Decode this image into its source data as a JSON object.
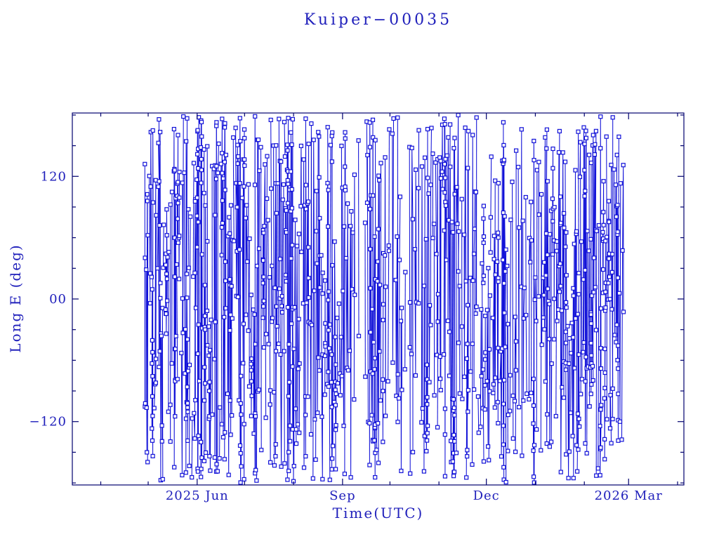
{
  "chart_data": {
    "type": "line",
    "title": "Kuiper−00035",
    "xlabel": "Time(UTC)",
    "ylabel": "Long E (deg)",
    "grid": false,
    "legend": null,
    "colors": {
      "frame": "#00006e",
      "text": "#2020bb",
      "data": "#1212d8"
    },
    "x_axis": {
      "start_date": "2025-03-14",
      "span_days": 387,
      "major_ticks": [
        {
          "day": 79,
          "label": "2025 Jun"
        },
        {
          "day": 171,
          "label": "Sep"
        },
        {
          "day": 262,
          "label": "Dec"
        },
        {
          "day": 352,
          "label": "2026 Mar"
        }
      ],
      "minor_tick_days": [
        18,
        48,
        109,
        140,
        201,
        232,
        293,
        324,
        383
      ]
    },
    "y_axis": {
      "lim": [
        -182,
        182
      ],
      "major_ticks": [
        {
          "value": 120,
          "label": "120"
        },
        {
          "value": 0,
          "label": "00"
        },
        {
          "value": -120,
          "label": "−120"
        }
      ],
      "minor_step": 30
    },
    "series": [
      {
        "name": "longitude-track",
        "marker": "open-square",
        "marker_size": 5,
        "line_width": 1.05,
        "coverage_days": [
          45,
          348
        ],
        "generation": {
          "seed": 20250035,
          "base_gap_days": 1.05,
          "gap_jitter": [
            0.35,
            1.65
          ],
          "cluster_probability": 0.15,
          "pass_points_range": [
            2,
            4
          ],
          "cluster_points_range": [
            5,
            11
          ],
          "normal_step_deg": [
            100,
            340
          ],
          "cluster_step_deg": [
            18,
            75
          ],
          "point_dt_days": [
            0.04,
            0.55
          ],
          "cluster_dt_days": [
            0.02,
            0.14
          ],
          "density_profile": [
            [
              45,
              1.5
            ],
            [
              60,
              1.1
            ],
            [
              80,
              1.0
            ],
            [
              92,
              1.4
            ],
            [
              105,
              1.0
            ],
            [
              120,
              1.1
            ],
            [
              135,
              1.3
            ],
            [
              150,
              1.0
            ],
            [
              165,
              1.2
            ],
            [
              181,
              0.35
            ],
            [
              190,
              1.1
            ],
            [
              200,
              0.8
            ],
            [
              212,
              0.5
            ],
            [
              222,
              1.0
            ],
            [
              235,
              1.2
            ],
            [
              255,
              1.0
            ],
            [
              270,
              1.2
            ],
            [
              287,
              0.7
            ],
            [
              295,
              1.2
            ],
            [
              310,
              1.3
            ],
            [
              325,
              1.5
            ],
            [
              340,
              1.2
            ],
            [
              348,
              1.0
            ]
          ]
        }
      }
    ]
  }
}
